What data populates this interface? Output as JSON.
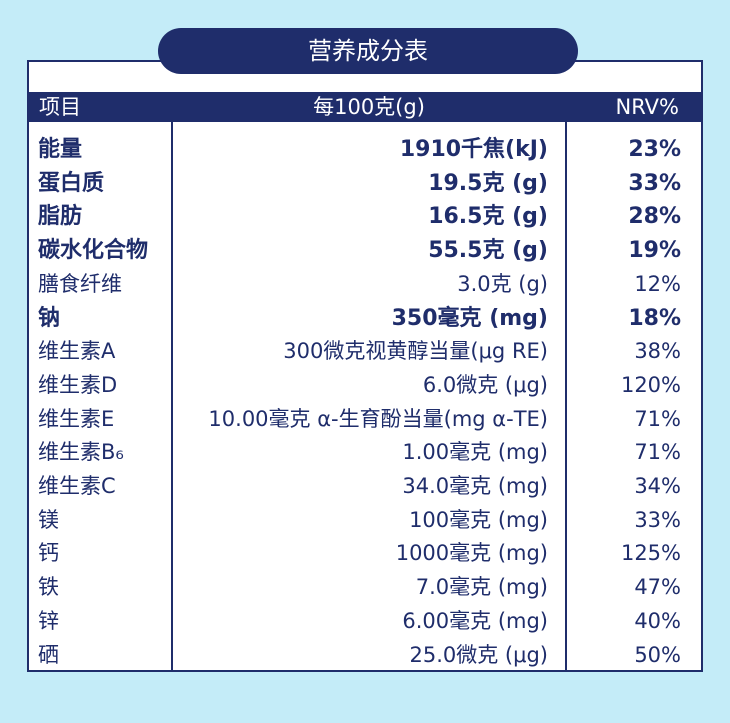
{
  "title": "营养成分表",
  "table": {
    "header": [
      "项目",
      "每100克(g)",
      "NRV%"
    ],
    "rows": [
      {
        "item": "能量",
        "amount": "1910千焦(kJ)",
        "nrv": "23%",
        "bold": true
      },
      {
        "item": "蛋白质",
        "amount": "19.5克 (g)",
        "nrv": "33%",
        "bold": true
      },
      {
        "item": "脂肪",
        "amount": "16.5克 (g)",
        "nrv": "28%",
        "bold": true
      },
      {
        "item": "碳水化合物",
        "amount": "55.5克 (g)",
        "nrv": "19%",
        "bold": true
      },
      {
        "item": "膳食纤维",
        "amount": "3.0克 (g)",
        "nrv": "12%",
        "bold": false
      },
      {
        "item": "钠",
        "amount": "350毫克 (mg)",
        "nrv": "18%",
        "bold": true
      },
      {
        "item": "维生素A",
        "amount": "300微克视黄醇当量(μg RE)",
        "nrv": "38%",
        "bold": false
      },
      {
        "item": "维生素D",
        "amount": "6.0微克 (μg)",
        "nrv": "120%",
        "bold": false
      },
      {
        "item": "维生素E",
        "amount": "10.00毫克 α-生育酚当量(mg α-TE)",
        "nrv": "71%",
        "bold": false
      },
      {
        "item": "维生素B₆",
        "amount": "1.00毫克 (mg)",
        "nrv": "71%",
        "bold": false
      },
      {
        "item": "维生素C",
        "amount": "34.0毫克 (mg)",
        "nrv": "34%",
        "bold": false
      },
      {
        "item": "镁",
        "amount": "100毫克 (mg)",
        "nrv": "33%",
        "bold": false
      },
      {
        "item": "钙",
        "amount": "1000毫克 (mg)",
        "nrv": "125%",
        "bold": false
      },
      {
        "item": "铁",
        "amount": "7.0毫克 (mg)",
        "nrv": "47%",
        "bold": false
      },
      {
        "item": "锌",
        "amount": "6.00毫克 (mg)",
        "nrv": "40%",
        "bold": false
      },
      {
        "item": "硒",
        "amount": "25.0微克 (μg)",
        "nrv": "50%",
        "bold": false
      }
    ]
  }
}
